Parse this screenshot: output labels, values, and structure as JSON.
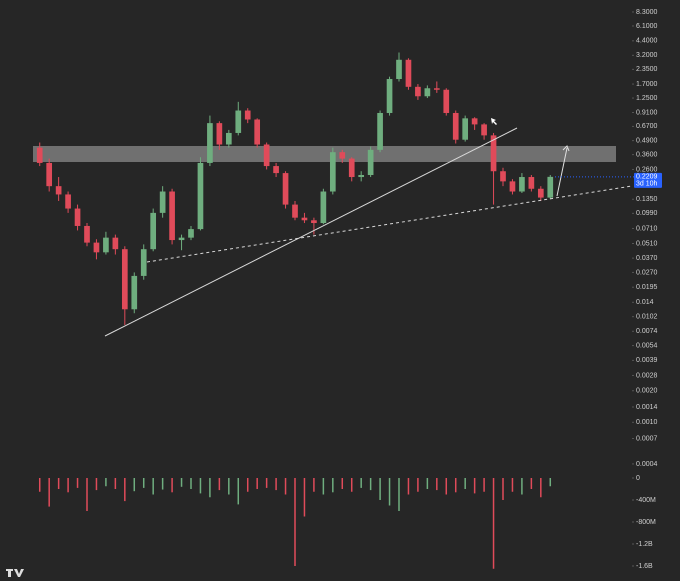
{
  "chart_data": {
    "type": "candlestick",
    "log_scale": true,
    "up_color": "#6fae7f",
    "down_color": "#e04b5a",
    "ylim": [
      0.00035,
      10.8
    ],
    "yticks": [
      {
        "value": 8.3,
        "label": "8.3000"
      },
      {
        "value": 6.1,
        "label": "6.1000"
      },
      {
        "value": 4.4,
        "label": "4.4000"
      },
      {
        "value": 3.2,
        "label": "3.2000"
      },
      {
        "value": 2.35,
        "label": "2.3500"
      },
      {
        "value": 1.7,
        "label": "1.7000"
      },
      {
        "value": 1.25,
        "label": "1.2500"
      },
      {
        "value": 0.91,
        "label": "0.9100"
      },
      {
        "value": 0.67,
        "label": "0.6700"
      },
      {
        "value": 0.49,
        "label": "0.4900"
      },
      {
        "value": 0.36,
        "label": "0.3600"
      },
      {
        "value": 0.26,
        "label": "0.2600"
      },
      {
        "value": 0.135,
        "label": "0.1350"
      },
      {
        "value": 0.099,
        "label": "0.0990"
      },
      {
        "value": 0.071,
        "label": "0.0710"
      },
      {
        "value": 0.051,
        "label": "0.0510"
      },
      {
        "value": 0.037,
        "label": "0.0370"
      },
      {
        "value": 0.027,
        "label": "0.0270"
      },
      0.0195,
      0.014,
      {
        "value": 0.0102,
        "label": "0.0102"
      },
      0.0074,
      0.0054,
      0.0039,
      0.0028,
      {
        "value": 0.002,
        "label": "0.0020"
      },
      0.0014,
      {
        "value": 0.001,
        "label": "0.0010"
      },
      0.0007,
      0.0004
    ],
    "last_price": 0.2209,
    "countdown": "3d 10h",
    "candles": [
      [
        0.42,
        0.47,
        0.28,
        0.3
      ],
      [
        0.3,
        0.33,
        0.16,
        0.18
      ],
      [
        0.18,
        0.22,
        0.13,
        0.15
      ],
      [
        0.15,
        0.16,
        0.1,
        0.11
      ],
      [
        0.11,
        0.12,
        0.068,
        0.075
      ],
      [
        0.075,
        0.08,
        0.048,
        0.052
      ],
      [
        0.052,
        0.056,
        0.036,
        0.042
      ],
      [
        0.042,
        0.066,
        0.04,
        0.058
      ],
      [
        0.058,
        0.062,
        0.04,
        0.045
      ],
      [
        0.045,
        0.048,
        0.0085,
        0.012
      ],
      [
        0.012,
        0.027,
        0.011,
        0.025
      ],
      [
        0.025,
        0.05,
        0.023,
        0.045
      ],
      [
        0.045,
        0.11,
        0.043,
        0.1
      ],
      [
        0.1,
        0.18,
        0.09,
        0.16
      ],
      [
        0.16,
        0.17,
        0.05,
        0.055
      ],
      [
        0.055,
        0.062,
        0.044,
        0.058
      ],
      [
        0.058,
        0.075,
        0.055,
        0.07
      ],
      [
        0.07,
        0.34,
        0.068,
        0.3
      ],
      [
        0.3,
        0.85,
        0.28,
        0.72
      ],
      [
        0.72,
        0.75,
        0.4,
        0.45
      ],
      [
        0.45,
        0.62,
        0.42,
        0.58
      ],
      [
        0.58,
        1.15,
        0.55,
        0.95
      ],
      [
        0.95,
        1.0,
        0.72,
        0.78
      ],
      [
        0.78,
        0.8,
        0.42,
        0.45
      ],
      [
        0.45,
        0.47,
        0.26,
        0.28
      ],
      [
        0.28,
        0.3,
        0.22,
        0.24
      ],
      [
        0.24,
        0.25,
        0.11,
        0.12
      ],
      [
        0.12,
        0.13,
        0.085,
        0.09
      ],
      [
        0.09,
        0.1,
        0.08,
        0.085
      ],
      [
        0.085,
        0.09,
        0.062,
        0.08
      ],
      [
        0.08,
        0.17,
        0.078,
        0.16
      ],
      [
        0.16,
        0.42,
        0.15,
        0.38
      ],
      [
        0.38,
        0.4,
        0.3,
        0.33
      ],
      [
        0.33,
        0.34,
        0.2,
        0.22
      ],
      [
        0.22,
        0.25,
        0.2,
        0.23
      ],
      [
        0.23,
        0.43,
        0.22,
        0.4
      ],
      [
        0.4,
        0.95,
        0.38,
        0.9
      ],
      [
        0.9,
        2.0,
        0.85,
        1.9
      ],
      [
        1.9,
        3.4,
        1.8,
        2.9
      ],
      [
        2.9,
        3.0,
        1.5,
        1.6
      ],
      [
        1.6,
        1.7,
        1.2,
        1.3
      ],
      [
        1.3,
        1.65,
        1.25,
        1.55
      ],
      [
        1.55,
        1.8,
        1.4,
        1.5
      ],
      [
        1.5,
        1.55,
        0.85,
        0.9
      ],
      [
        0.9,
        0.95,
        0.46,
        0.5
      ],
      [
        0.5,
        0.85,
        0.48,
        0.8
      ],
      [
        0.8,
        0.82,
        0.62,
        0.7
      ],
      [
        0.7,
        0.72,
        0.5,
        0.55
      ],
      [
        0.55,
        0.58,
        0.12,
        0.25
      ],
      [
        0.25,
        0.27,
        0.18,
        0.2
      ],
      [
        0.2,
        0.21,
        0.15,
        0.16
      ],
      [
        0.16,
        0.24,
        0.155,
        0.22
      ],
      [
        0.22,
        0.23,
        0.16,
        0.17
      ],
      [
        0.17,
        0.18,
        0.13,
        0.14
      ],
      [
        0.14,
        0.23,
        0.135,
        0.2209
      ]
    ],
    "volume": {
      "ylim": [
        -1800000000,
        100000000
      ],
      "yticks": [
        0,
        {
          "value": -400000000,
          "label": "-400M"
        },
        {
          "value": -800000000,
          "label": "-800M"
        },
        {
          "value": -1200000000,
          "label": "-1.2B"
        },
        {
          "value": -1600000000,
          "label": "-1.6B"
        }
      ],
      "values": [
        -250000000,
        -520000000,
        -200000000,
        -260000000,
        -180000000,
        -600000000,
        -220000000,
        -150000000,
        -200000000,
        -420000000,
        -240000000,
        -180000000,
        -300000000,
        -210000000,
        -260000000,
        -160000000,
        -200000000,
        -280000000,
        -350000000,
        -220000000,
        -300000000,
        -480000000,
        -250000000,
        -200000000,
        -180000000,
        -220000000,
        -300000000,
        -1600000000,
        -700000000,
        -250000000,
        -300000000,
        -260000000,
        -200000000,
        -250000000,
        -180000000,
        -220000000,
        -400000000,
        -500000000,
        -600000000,
        -300000000,
        -250000000,
        -200000000,
        -220000000,
        -300000000,
        -260000000,
        -200000000,
        -280000000,
        -250000000,
        -1650000000,
        -400000000,
        -250000000,
        -300000000,
        -200000000,
        -350000000,
        -150000000
      ]
    }
  }
}
